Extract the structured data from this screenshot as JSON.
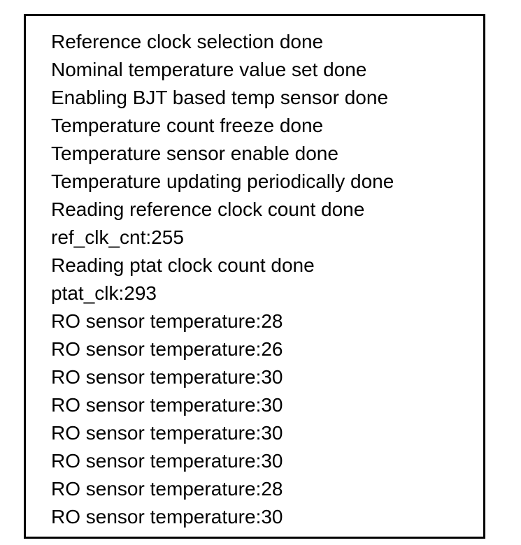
{
  "log": {
    "lines": [
      "Reference clock selection done",
      "Nominal temperature value set done",
      "Enabling BJT based temp sensor done",
      "Temperature count freeze done",
      "Temperature sensor enable done",
      "Temperature updating periodically done",
      "Reading reference clock count done",
      "ref_clk_cnt:255",
      "Reading ptat clock count done",
      "ptat_clk:293",
      "RO sensor temperature:28",
      "RO sensor temperature:26",
      "RO sensor temperature:30",
      "RO sensor temperature:30",
      "RO sensor temperature:30",
      "RO sensor temperature:30",
      "RO sensor temperature:28",
      "RO sensor temperature:30"
    ],
    "colors": {
      "text": "#000000",
      "border": "#000000",
      "background": "#ffffff"
    }
  }
}
